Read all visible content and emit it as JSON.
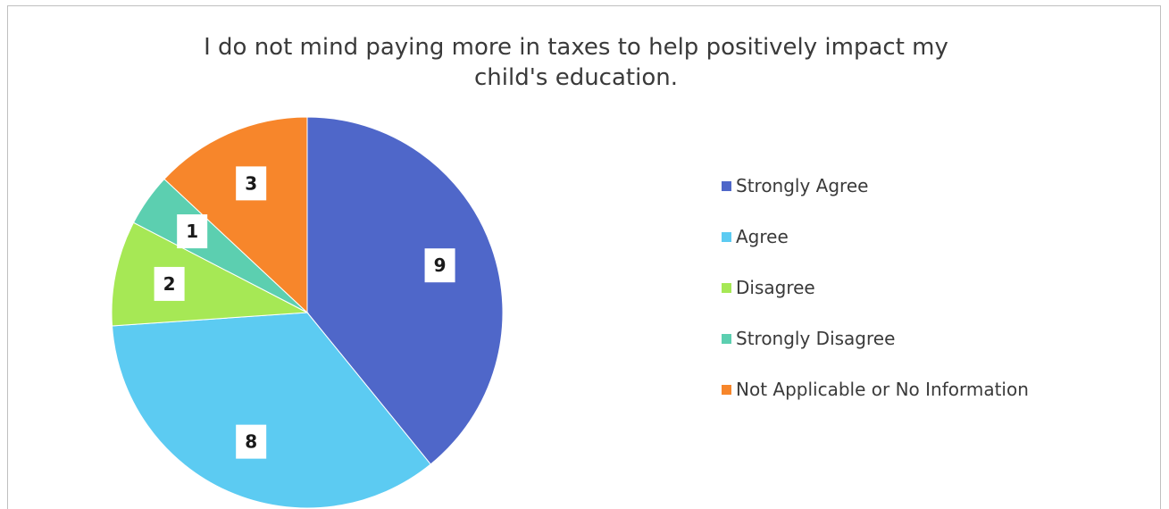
{
  "chart_data": {
    "type": "pie",
    "title": "I do not mind paying more in taxes to help positively impact my child's education.",
    "title_lines": [
      "I do not mind paying more in taxes to help positively impact my",
      "child's education."
    ],
    "categories": [
      "Strongly Agree",
      "Agree",
      "Disagree",
      "Strongly Disagree",
      "Not Applicable or No Information"
    ],
    "values": [
      9,
      8,
      2,
      1,
      3
    ],
    "colors": [
      "#4f67c9",
      "#5ccbf2",
      "#a6e855",
      "#5ccfb0",
      "#f7862b"
    ],
    "data_labels": [
      "9",
      "8",
      "2",
      "1",
      "3"
    ],
    "legend_position": "right",
    "start_angle_deg": 0,
    "direction": "clockwise"
  }
}
